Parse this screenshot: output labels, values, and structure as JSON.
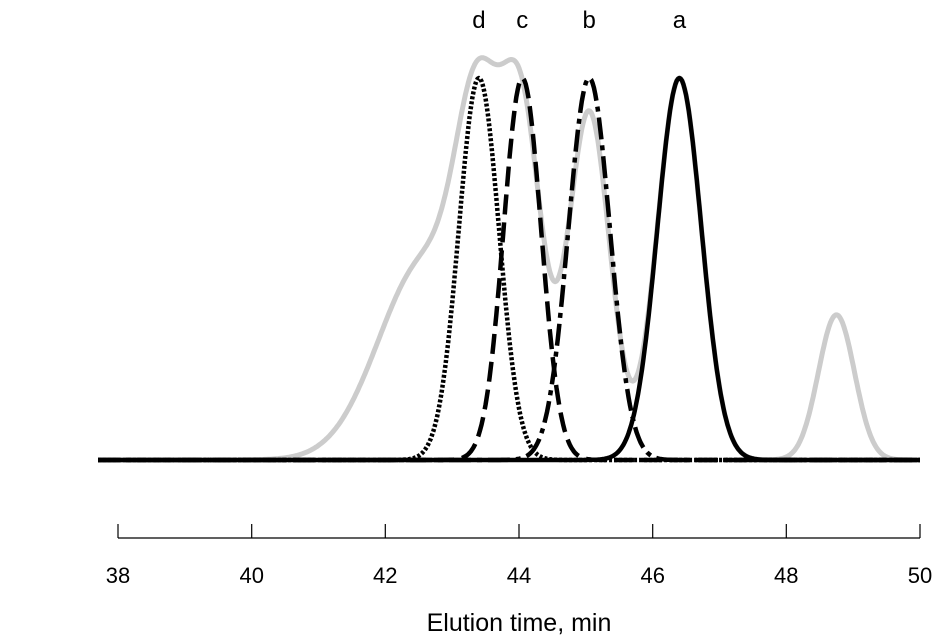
{
  "chart_data": {
    "type": "line",
    "title": "",
    "xlabel": "Elution time, min",
    "ylabel": "",
    "xlim": [
      38,
      50
    ],
    "x_ticks": [
      "38",
      "40",
      "42",
      "44",
      "46",
      "48",
      "50"
    ],
    "grid": false,
    "peak_labels": [
      {
        "label": "d",
        "x": 43.4
      },
      {
        "label": "c",
        "x": 44.05
      },
      {
        "label": "b",
        "x": 45.05
      },
      {
        "label": "a",
        "x": 46.4
      }
    ],
    "series": [
      {
        "label_key": "overall",
        "style": "solid",
        "color": "#cccccc",
        "peaks": [
          {
            "center": 42.6,
            "height": 0.52,
            "width": 0.7
          },
          {
            "center": 43.4,
            "height": 0.7,
            "width": 0.33
          },
          {
            "center": 44.05,
            "height": 0.83,
            "width": 0.3
          },
          {
            "center": 45.05,
            "height": 0.91,
            "width": 0.31
          },
          {
            "center": 46.4,
            "height": 1.0,
            "width": 0.33
          },
          {
            "center": 48.75,
            "height": 0.38,
            "width": 0.27
          }
        ]
      },
      {
        "label_key": "a",
        "style": "solid",
        "color": "#000000",
        "peaks": [
          {
            "center": 46.4,
            "height": 1.0,
            "width": 0.33
          }
        ]
      },
      {
        "label_key": "b",
        "style": "dash-dot",
        "color": "#000000",
        "peaks": [
          {
            "center": 45.05,
            "height": 1.0,
            "width": 0.31
          }
        ]
      },
      {
        "label_key": "c",
        "style": "dashed",
        "color": "#000000",
        "peaks": [
          {
            "center": 44.05,
            "height": 1.0,
            "width": 0.28
          }
        ]
      },
      {
        "label_key": "d",
        "style": "dotted",
        "color": "#000000",
        "peaks": [
          {
            "center": 43.4,
            "height": 1.0,
            "width": 0.3
          }
        ]
      }
    ]
  }
}
